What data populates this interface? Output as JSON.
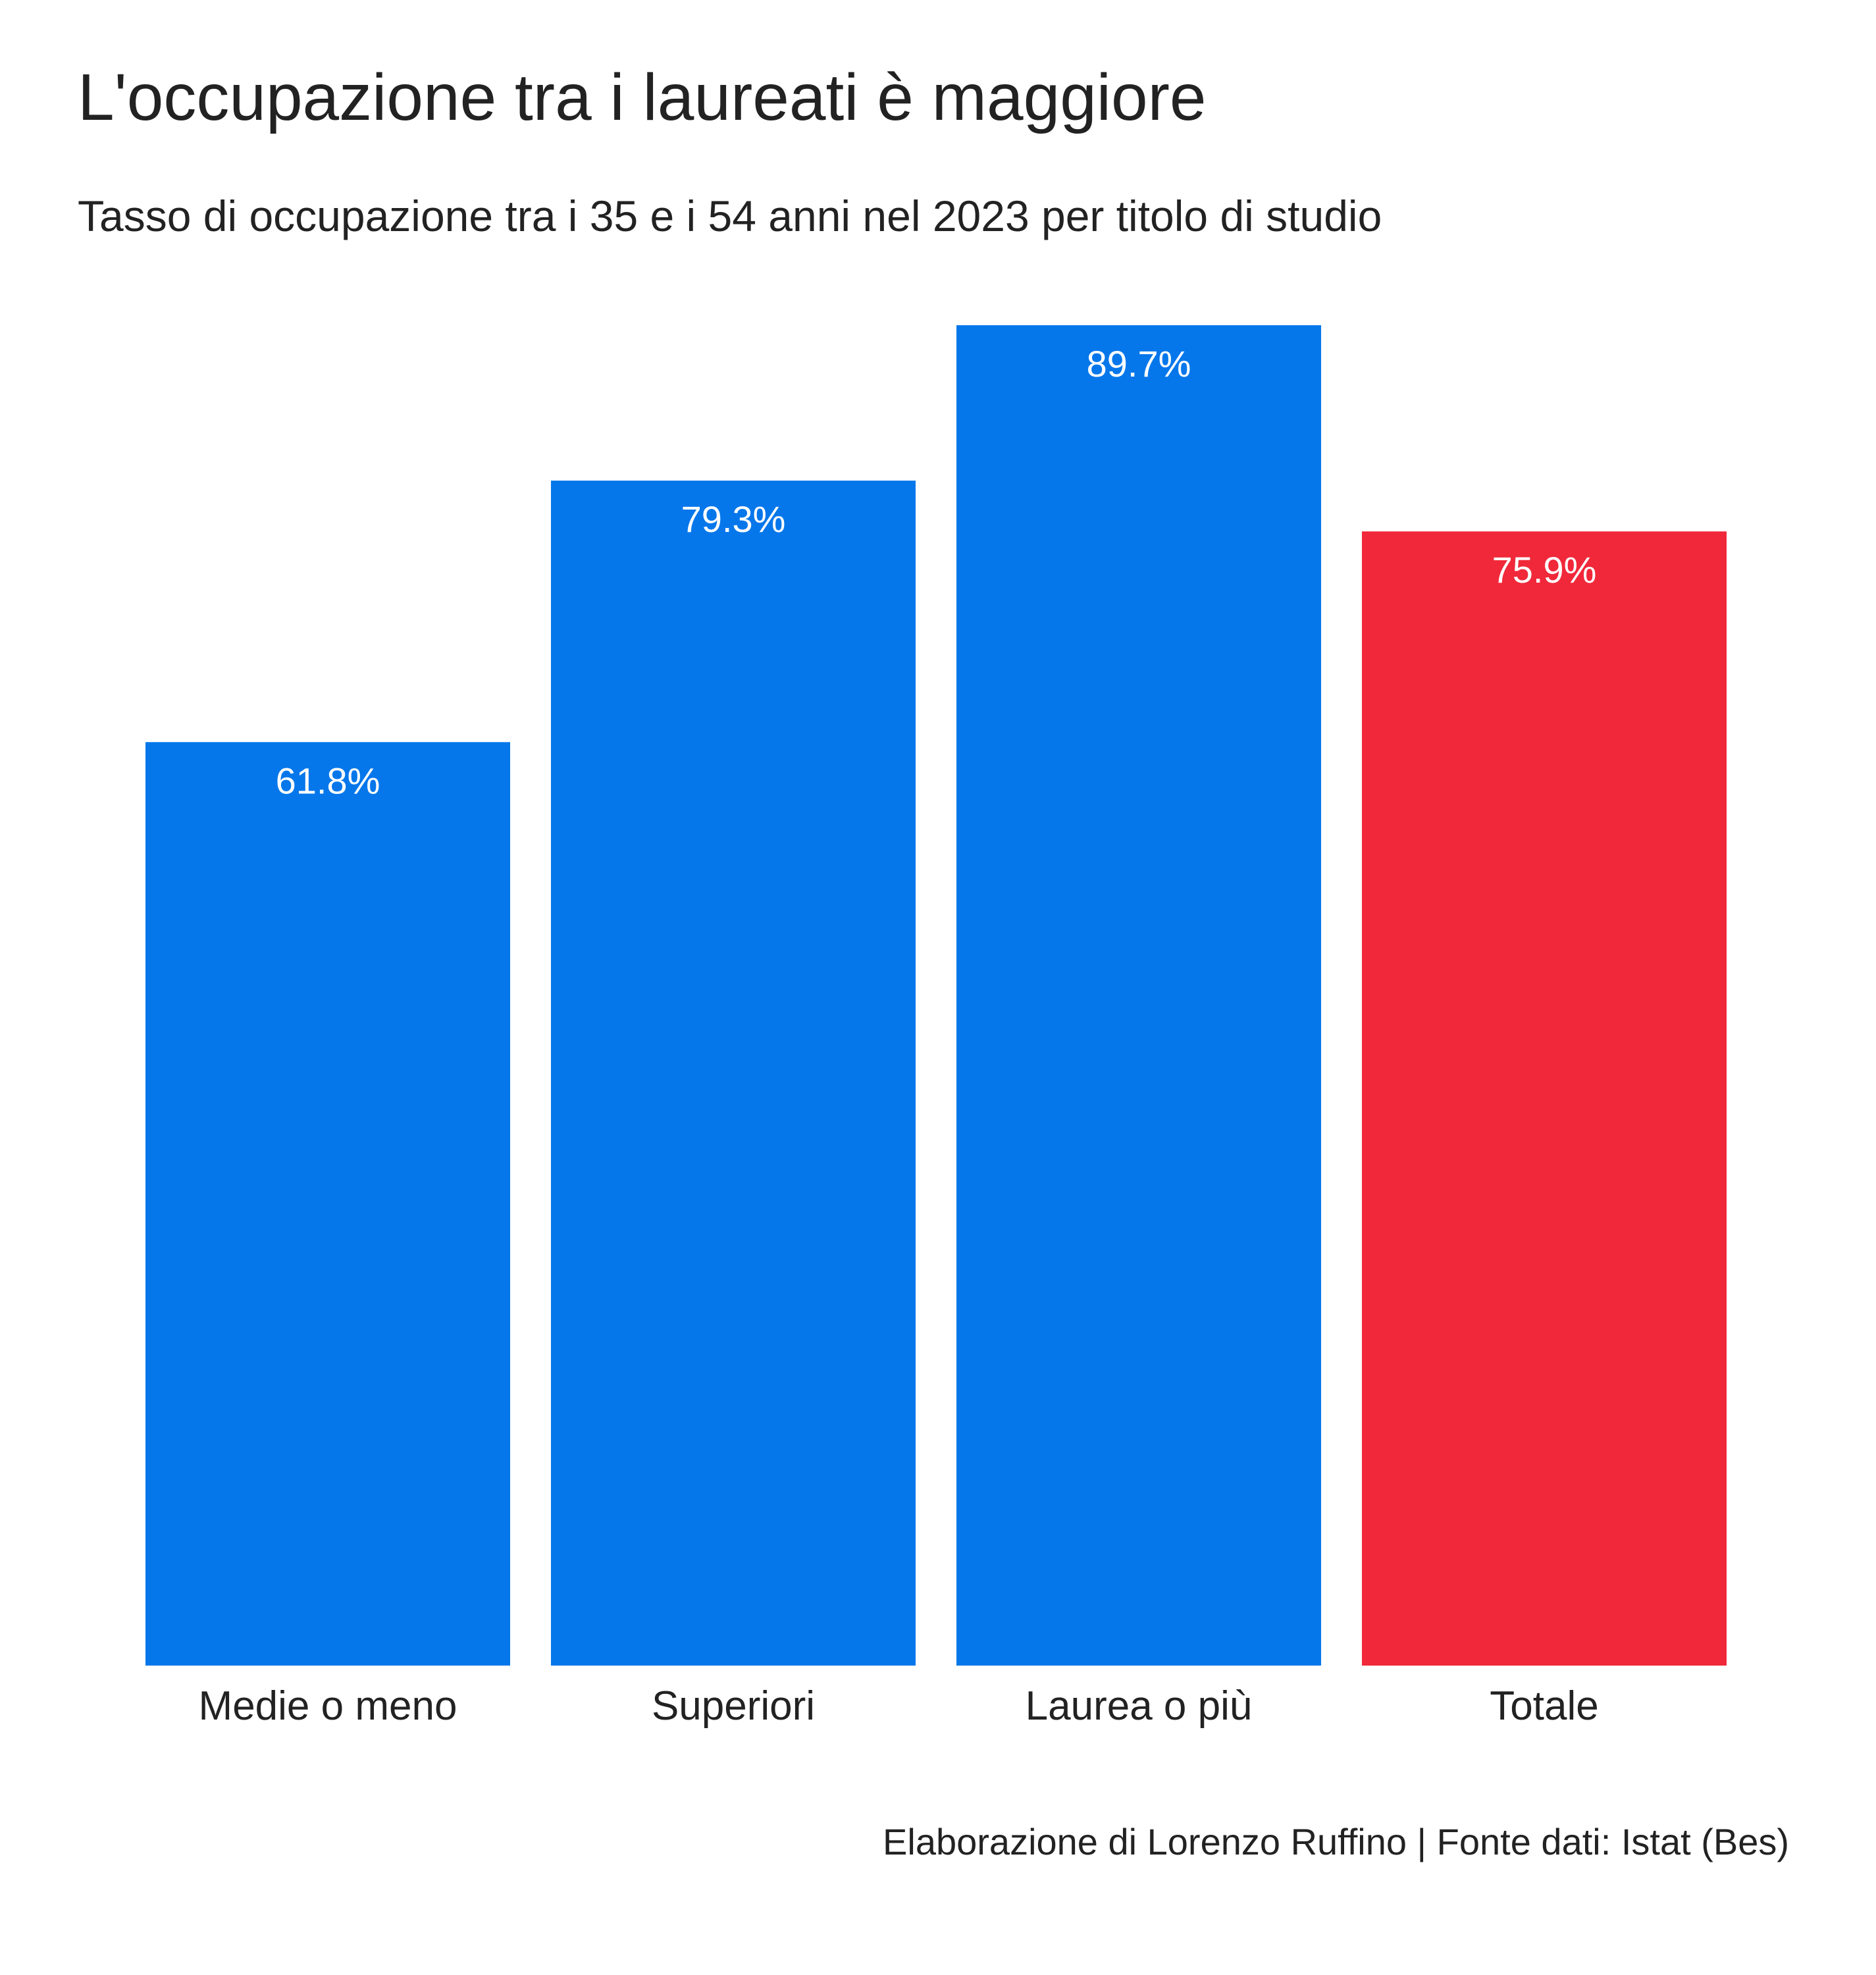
{
  "header": {
    "title": "L'occupazione tra i laureati è maggiore",
    "subtitle": "Tasso di occupazione tra i 35 e i 54 anni nel 2023 per titolo di studio"
  },
  "footer": {
    "caption": "Elaborazione di Lorenzo Ruffino | Fonte dati: Istat (Bes)"
  },
  "chart_data": {
    "type": "bar",
    "title": "L'occupazione tra i laureati è maggiore",
    "subtitle": "Tasso di occupazione tra i 35 e i 54 anni nel 2023 per titolo di studio",
    "categories": [
      "Medie o meno",
      "Superiori",
      "Laurea o più",
      "Totale"
    ],
    "values": [
      61.8,
      79.3,
      89.7,
      75.9
    ],
    "value_labels": [
      "61.8%",
      "79.3%",
      "89.7%",
      "75.9%"
    ],
    "colors": [
      "#0677EB",
      "#0677EB",
      "#0677EB",
      "#F0283A"
    ],
    "xlabel": "",
    "ylabel": "",
    "ylim": [
      0,
      89.7
    ],
    "y_axis_visible": false,
    "grid": false,
    "legend": "none"
  }
}
